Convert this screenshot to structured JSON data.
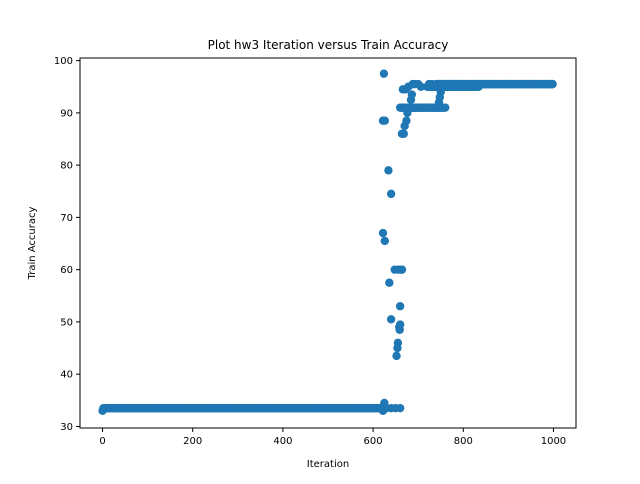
{
  "chart_data": {
    "type": "scatter",
    "title": "Plot hw3 Iteration versus Train Accuracy",
    "xlabel": "Iteration",
    "ylabel": "Train Accuracy",
    "xlim": [
      -50,
      1050
    ],
    "ylim": [
      29.7,
      100.5
    ],
    "xticks": [
      0,
      200,
      400,
      600,
      800,
      1000
    ],
    "yticks": [
      30,
      40,
      50,
      60,
      70,
      80,
      90,
      100
    ],
    "grid": false,
    "marker_color": "#1f77b4",
    "series": [
      {
        "points": [
          [
            0,
            33.0
          ],
          [
            2,
            33.5
          ],
          [
            640,
            33.5
          ],
          [
            650,
            33.5
          ],
          [
            660,
            33.5
          ],
          [
            622,
            33.0
          ],
          [
            625,
            34.5
          ],
          [
            630,
            33.5
          ],
          [
            622,
            88.5
          ],
          [
            624,
            97.5
          ],
          [
            626,
            88.5
          ],
          [
            622,
            67.0
          ],
          [
            626,
            65.5
          ],
          [
            634,
            79.0
          ],
          [
            636,
            57.5
          ],
          [
            640,
            74.5
          ],
          [
            640,
            50.5
          ],
          [
            648,
            60.0
          ],
          [
            652,
            43.5
          ],
          [
            654,
            45.0
          ],
          [
            655,
            46.0
          ],
          [
            656,
            60.0
          ],
          [
            658,
            49.0
          ],
          [
            659,
            48.5
          ],
          [
            660,
            49.5
          ],
          [
            660,
            53.0
          ],
          [
            662,
            60.0
          ],
          [
            664,
            60.0
          ],
          [
            664,
            86.0
          ],
          [
            666,
            94.5
          ],
          [
            668,
            86.0
          ],
          [
            670,
            87.5
          ],
          [
            672,
            94.5
          ],
          [
            674,
            88.5
          ],
          [
            676,
            90.0
          ],
          [
            678,
            95.0
          ],
          [
            680,
            91.0
          ],
          [
            684,
            92.5
          ],
          [
            686,
            93.5
          ],
          [
            688,
            95.5
          ],
          [
            690,
            91.0
          ],
          [
            692,
            95.5
          ],
          [
            696,
            91.0
          ],
          [
            700,
            95.5
          ],
          [
            706,
            95.0
          ],
          [
            710,
            91.0
          ],
          [
            720,
            91.0
          ],
          [
            724,
            95.5
          ],
          [
            730,
            95.5
          ],
          [
            736,
            91.0
          ],
          [
            740,
            91.0
          ],
          [
            744,
            91.0
          ],
          [
            746,
            92.0
          ],
          [
            748,
            93.0
          ],
          [
            750,
            94.0
          ],
          [
            752,
            95.0
          ],
          [
            756,
            95.5
          ],
          [
            760,
            95.0
          ],
          [
            766,
            95.0
          ],
          [
            770,
            95.5
          ],
          [
            780,
            95.5
          ],
          [
            790,
            95.5
          ],
          [
            800,
            95.0
          ],
          [
            810,
            95.0
          ],
          [
            820,
            95.0
          ],
          [
            830,
            95.0
          ],
          [
            836,
            95.5
          ],
          [
            850,
            95.5
          ],
          [
            870,
            95.5
          ],
          [
            900,
            95.5
          ],
          [
            930,
            95.5
          ],
          [
            960,
            95.5
          ],
          [
            990,
            95.5
          ],
          [
            998,
            95.5
          ]
        ],
        "runs": [
          {
            "x_range": [
              5,
              620
            ],
            "y": 33.5
          },
          {
            "x_range": [
              660,
              760
            ],
            "y": 91.0
          },
          {
            "x_range": [
              720,
              835
            ],
            "y": 95.0
          },
          {
            "x_range": [
              740,
              998
            ],
            "y": 95.5
          }
        ]
      }
    ]
  }
}
